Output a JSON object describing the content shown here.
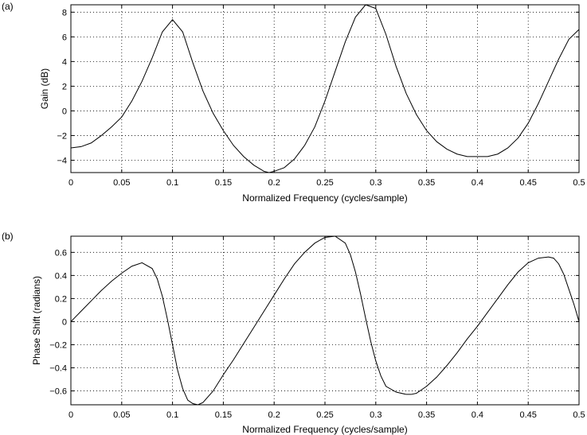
{
  "chart_data": [
    {
      "type": "line",
      "panel_tag": "(a)",
      "xlabel": "Normalized Frequency (cycles/sample)",
      "ylabel": "Gain (dB)",
      "xlim": [
        0,
        0.5
      ],
      "ylim": [
        -5,
        8.6
      ],
      "xticks": [
        0,
        0.05,
        0.1,
        0.15,
        0.2,
        0.25,
        0.3,
        0.35,
        0.4,
        0.45,
        0.5
      ],
      "xtick_labels": [
        "0",
        "0.05",
        "0.1",
        "0.15",
        "0.2",
        "0.25",
        "0.3",
        "0.35",
        "0.4",
        "0.45",
        "0.5"
      ],
      "yticks": [
        -4,
        -2,
        0,
        2,
        4,
        6,
        8
      ],
      "ytick_labels": [
        "−4",
        "−2",
        "0",
        "2",
        "4",
        "6",
        "8"
      ],
      "grid": true,
      "series": [
        {
          "x": [
            0,
            0.01,
            0.02,
            0.03,
            0.04,
            0.05,
            0.06,
            0.07,
            0.08,
            0.09,
            0.1,
            0.11,
            0.12,
            0.13,
            0.14,
            0.15,
            0.16,
            0.17,
            0.18,
            0.19,
            0.195,
            0.2,
            0.21,
            0.22,
            0.23,
            0.24,
            0.25,
            0.26,
            0.27,
            0.28,
            0.29,
            0.3,
            0.31,
            0.32,
            0.33,
            0.34,
            0.35,
            0.36,
            0.37,
            0.38,
            0.39,
            0.4,
            0.41,
            0.42,
            0.43,
            0.44,
            0.45,
            0.46,
            0.47,
            0.48,
            0.49,
            0.5
          ],
          "y": [
            -3.0,
            -2.9,
            -2.6,
            -2.0,
            -1.3,
            -0.5,
            0.8,
            2.4,
            4.3,
            6.4,
            7.4,
            6.4,
            3.9,
            1.6,
            -0.2,
            -1.6,
            -2.8,
            -3.7,
            -4.4,
            -4.9,
            -5.0,
            -4.9,
            -4.6,
            -3.9,
            -2.8,
            -1.3,
            0.8,
            3.2,
            5.6,
            7.6,
            8.6,
            8.3,
            6.2,
            3.6,
            1.4,
            -0.3,
            -1.6,
            -2.5,
            -3.1,
            -3.5,
            -3.7,
            -3.7,
            -3.7,
            -3.5,
            -3.0,
            -2.2,
            -1.0,
            0.6,
            2.4,
            4.2,
            5.8,
            6.6
          ]
        }
      ]
    },
    {
      "type": "line",
      "panel_tag": "(b)",
      "xlabel": "Normalized Frequency (cycles/sample)",
      "ylabel": "Phase Shift (radians)",
      "xlim": [
        0,
        0.5
      ],
      "ylim": [
        -0.72,
        0.74
      ],
      "xticks": [
        0,
        0.05,
        0.1,
        0.15,
        0.2,
        0.25,
        0.3,
        0.35,
        0.4,
        0.45,
        0.5
      ],
      "xtick_labels": [
        "0",
        "0.05",
        "0.1",
        "0.15",
        "0.2",
        "0.25",
        "0.3",
        "0.35",
        "0.4",
        "0.45",
        "0.5"
      ],
      "yticks": [
        -0.6,
        -0.4,
        -0.2,
        0,
        0.2,
        0.4,
        0.6
      ],
      "ytick_labels": [
        "−0.6",
        "−0.4",
        "−0.2",
        "0",
        "0.2",
        "0.4",
        "0.6"
      ],
      "grid": true,
      "series": [
        {
          "x": [
            0,
            0.01,
            0.02,
            0.03,
            0.04,
            0.05,
            0.06,
            0.07,
            0.08,
            0.085,
            0.09,
            0.095,
            0.1,
            0.105,
            0.11,
            0.115,
            0.12,
            0.125,
            0.13,
            0.14,
            0.15,
            0.16,
            0.17,
            0.18,
            0.19,
            0.2,
            0.21,
            0.22,
            0.23,
            0.24,
            0.25,
            0.26,
            0.27,
            0.275,
            0.28,
            0.285,
            0.29,
            0.295,
            0.3,
            0.305,
            0.31,
            0.32,
            0.33,
            0.335,
            0.34,
            0.35,
            0.36,
            0.37,
            0.38,
            0.39,
            0.4,
            0.41,
            0.42,
            0.43,
            0.44,
            0.45,
            0.46,
            0.47,
            0.475,
            0.48,
            0.485,
            0.49,
            0.495,
            0.5
          ],
          "y": [
            0,
            0.09,
            0.18,
            0.27,
            0.35,
            0.42,
            0.48,
            0.51,
            0.46,
            0.37,
            0.22,
            0.02,
            -0.2,
            -0.42,
            -0.58,
            -0.68,
            -0.71,
            -0.72,
            -0.7,
            -0.6,
            -0.46,
            -0.33,
            -0.19,
            -0.05,
            0.09,
            0.23,
            0.37,
            0.5,
            0.6,
            0.68,
            0.73,
            0.74,
            0.68,
            0.58,
            0.43,
            0.24,
            0.03,
            -0.17,
            -0.34,
            -0.47,
            -0.56,
            -0.61,
            -0.63,
            -0.63,
            -0.62,
            -0.56,
            -0.48,
            -0.38,
            -0.27,
            -0.15,
            -0.04,
            0.08,
            0.2,
            0.32,
            0.43,
            0.51,
            0.55,
            0.56,
            0.55,
            0.5,
            0.41,
            0.28,
            0.15,
            0
          ]
        }
      ]
    }
  ]
}
